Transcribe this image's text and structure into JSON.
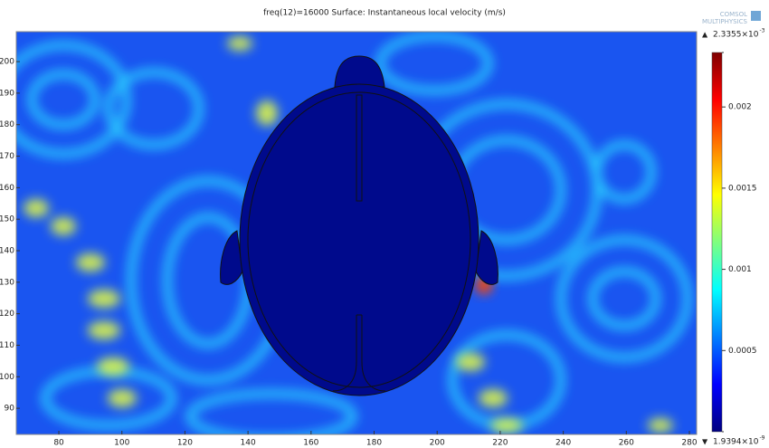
{
  "chart_data": {
    "type": "surface",
    "title": "freq(12)=16000   Surface: Instantaneous local velocity (m/s)",
    "logo": [
      "COMSOL",
      "MULTIPHYSICS"
    ],
    "xlim": [
      66.5,
      282.3
    ],
    "xticks": [
      80,
      100,
      120,
      140,
      160,
      180,
      200,
      220,
      240,
      260,
      280
    ],
    "ylim": [
      81.7,
      209.5
    ],
    "yticks": [
      90,
      100,
      110,
      120,
      130,
      140,
      150,
      160,
      170,
      180,
      190,
      200
    ],
    "colormap": "jet",
    "colorbar": {
      "max": {
        "value": 0.0023355,
        "label": "2.3355×10",
        "exponent": "-3"
      },
      "min": {
        "value": 1.9394e-09,
        "label": "1.9394×10",
        "exponent": "-9"
      },
      "ticks": [
        0.0005,
        0.001,
        0.0015,
        0.002
      ]
    }
  }
}
